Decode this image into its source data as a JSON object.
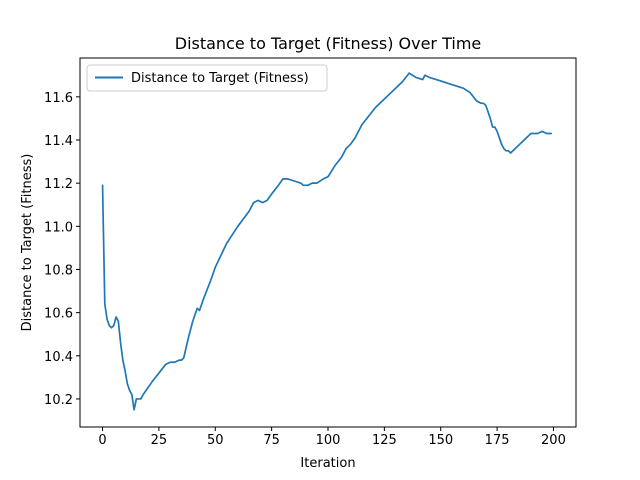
{
  "chart_data": {
    "type": "line",
    "title": "Distance to Target (Fitness) Over Time",
    "xlabel": "Iteration",
    "ylabel": "Distance to Target (Fitness)",
    "xlim": [
      -10,
      210
    ],
    "ylim": [
      10.07,
      11.78
    ],
    "xticks": [
      0,
      25,
      50,
      75,
      100,
      125,
      150,
      175,
      200
    ],
    "yticks": [
      10.2,
      10.4,
      10.6,
      10.8,
      11.0,
      11.2,
      11.4,
      11.6
    ],
    "ytick_labels": [
      "10.2",
      "10.4",
      "10.6",
      "10.8",
      "11.0",
      "11.2",
      "11.4",
      "11.6"
    ],
    "grid": false,
    "legend_position": "upper-left",
    "colors": {
      "line": "#1f77b4",
      "axes": "#000000",
      "background": "#ffffff"
    },
    "series": [
      {
        "name": "Distance to Target (Fitness)",
        "x": [
          0,
          1,
          2,
          3,
          4,
          5,
          6,
          7,
          8,
          9,
          10,
          11,
          12,
          13,
          14,
          15,
          16,
          17,
          18,
          20,
          22,
          25,
          28,
          30,
          32,
          34,
          35,
          36,
          38,
          40,
          42,
          43,
          45,
          48,
          50,
          55,
          60,
          65,
          67,
          69,
          71,
          73,
          75,
          78,
          80,
          82,
          85,
          88,
          89,
          90,
          91,
          93,
          95,
          98,
          100,
          103,
          106,
          108,
          110,
          112,
          115,
          118,
          121,
          124,
          127,
          130,
          133,
          136,
          139,
          142,
          143,
          145,
          148,
          151,
          154,
          157,
          160,
          163,
          166,
          168,
          169,
          170,
          171,
          172,
          173,
          174,
          175,
          176,
          177,
          178,
          179,
          180,
          181,
          182,
          183,
          185,
          187,
          188,
          189,
          190,
          191,
          192,
          193,
          195,
          197,
          199
        ],
        "values": [
          11.19,
          10.64,
          10.57,
          10.54,
          10.53,
          10.54,
          10.58,
          10.56,
          10.46,
          10.38,
          10.33,
          10.27,
          10.24,
          10.22,
          10.15,
          10.2,
          10.2,
          10.2,
          10.22,
          10.25,
          10.28,
          10.32,
          10.36,
          10.37,
          10.37,
          10.38,
          10.38,
          10.39,
          10.48,
          10.56,
          10.62,
          10.61,
          10.67,
          10.75,
          10.81,
          10.92,
          11.0,
          11.07,
          11.11,
          11.12,
          11.11,
          11.12,
          11.15,
          11.19,
          11.22,
          11.22,
          11.21,
          11.2,
          11.19,
          11.19,
          11.19,
          11.2,
          11.2,
          11.22,
          11.23,
          11.28,
          11.32,
          11.36,
          11.38,
          11.41,
          11.47,
          11.51,
          11.55,
          11.58,
          11.61,
          11.64,
          11.67,
          11.71,
          11.69,
          11.68,
          11.7,
          11.69,
          11.68,
          11.67,
          11.66,
          11.65,
          11.64,
          11.62,
          11.58,
          11.57,
          11.57,
          11.56,
          11.53,
          11.5,
          11.46,
          11.46,
          11.44,
          11.41,
          11.38,
          11.36,
          11.35,
          11.35,
          11.34,
          11.35,
          11.36,
          11.38,
          11.4,
          11.41,
          11.42,
          11.43,
          11.43,
          11.43,
          11.43,
          11.44,
          11.43,
          11.43
        ]
      }
    ]
  }
}
